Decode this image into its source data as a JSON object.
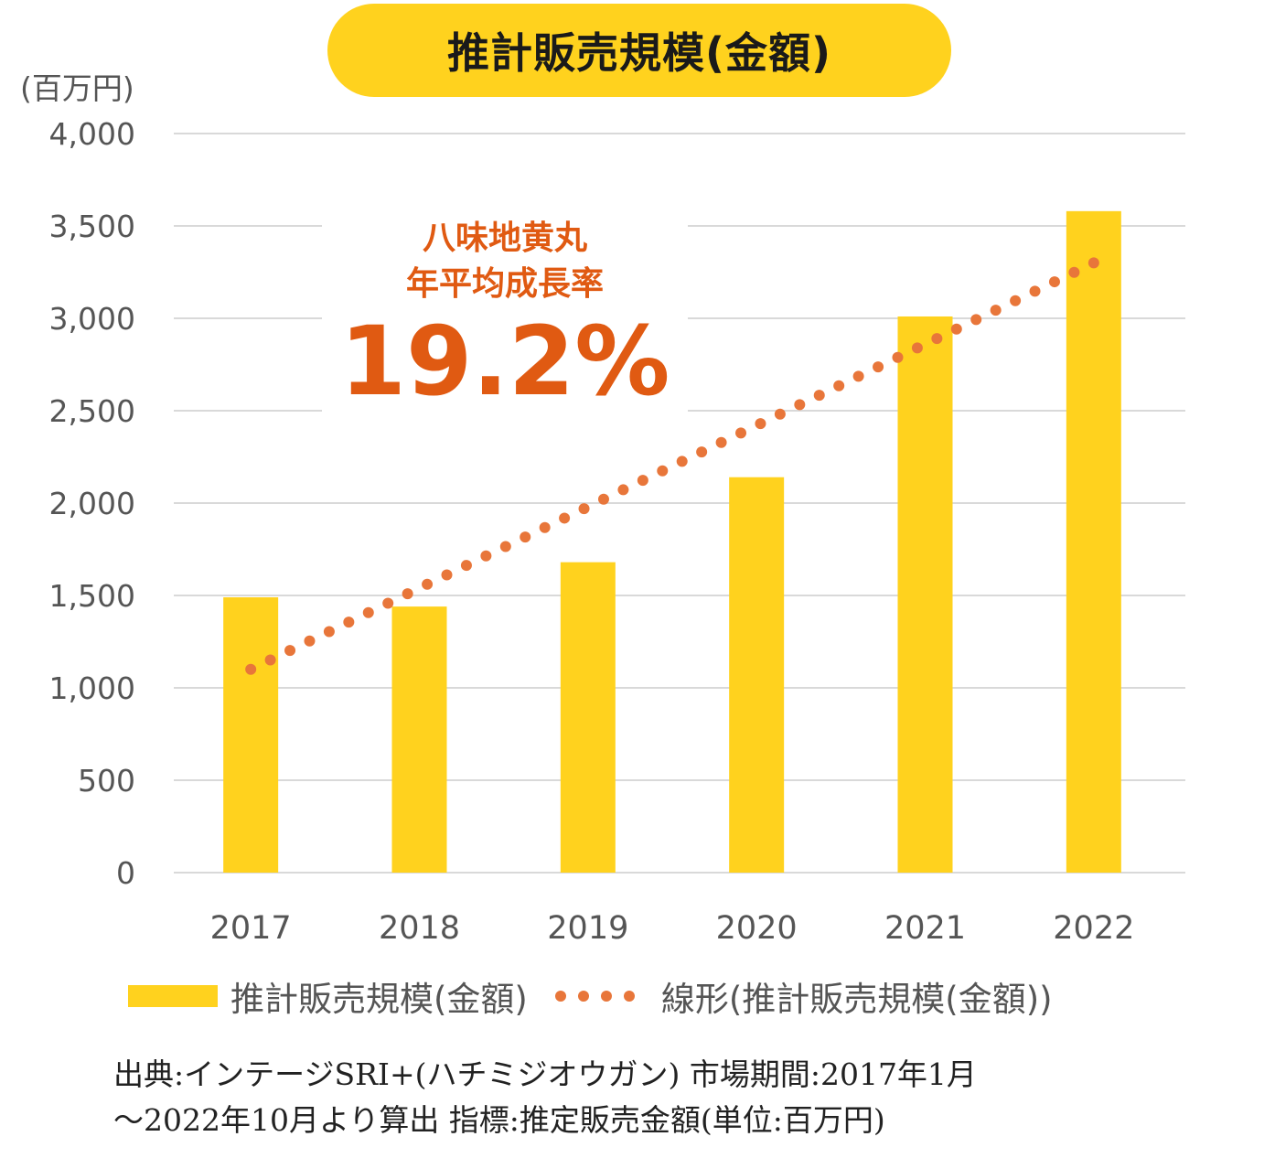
{
  "title": "推計販売規模(金額)",
  "unit_label": "(百万円)",
  "cagr": {
    "line1": "八味地黄丸",
    "line2": "年平均成長率",
    "value": "19.2%"
  },
  "legend": {
    "bars": "推計販売規模(金額)",
    "trend": "線形(推計販売規模(金額))"
  },
  "source": {
    "line1": "出典:インテージSRI+(ハチミジオウガン) 市場期間:2017年1月",
    "line2": "〜2022年10月より算出 指標:推定販売金額(単位:百万円)"
  },
  "colors": {
    "bar": "#FFD21E",
    "trend": "#E8763A",
    "cagr": "#E05A12",
    "grid": "#d9d9d9",
    "axis_text": "#555555"
  },
  "chart_data": {
    "type": "bar",
    "categories": [
      "2017",
      "2018",
      "2019",
      "2020",
      "2021",
      "2022"
    ],
    "series": [
      {
        "name": "推計販売規模(金額)",
        "values": [
          1490,
          1440,
          1680,
          2140,
          3010,
          3580
        ]
      }
    ],
    "trendline": {
      "name": "線形(推計販売規模(金額))",
      "type": "linear",
      "start": 1100,
      "end": 3300
    },
    "y_ticks": [
      "0",
      "500",
      "1,000",
      "1,500",
      "2,000",
      "2,500",
      "3,000",
      "3,500",
      "4,000"
    ],
    "ylim": [
      0,
      4000
    ],
    "ylabel": "(百万円)",
    "grid": true,
    "legend_position": "bottom"
  }
}
